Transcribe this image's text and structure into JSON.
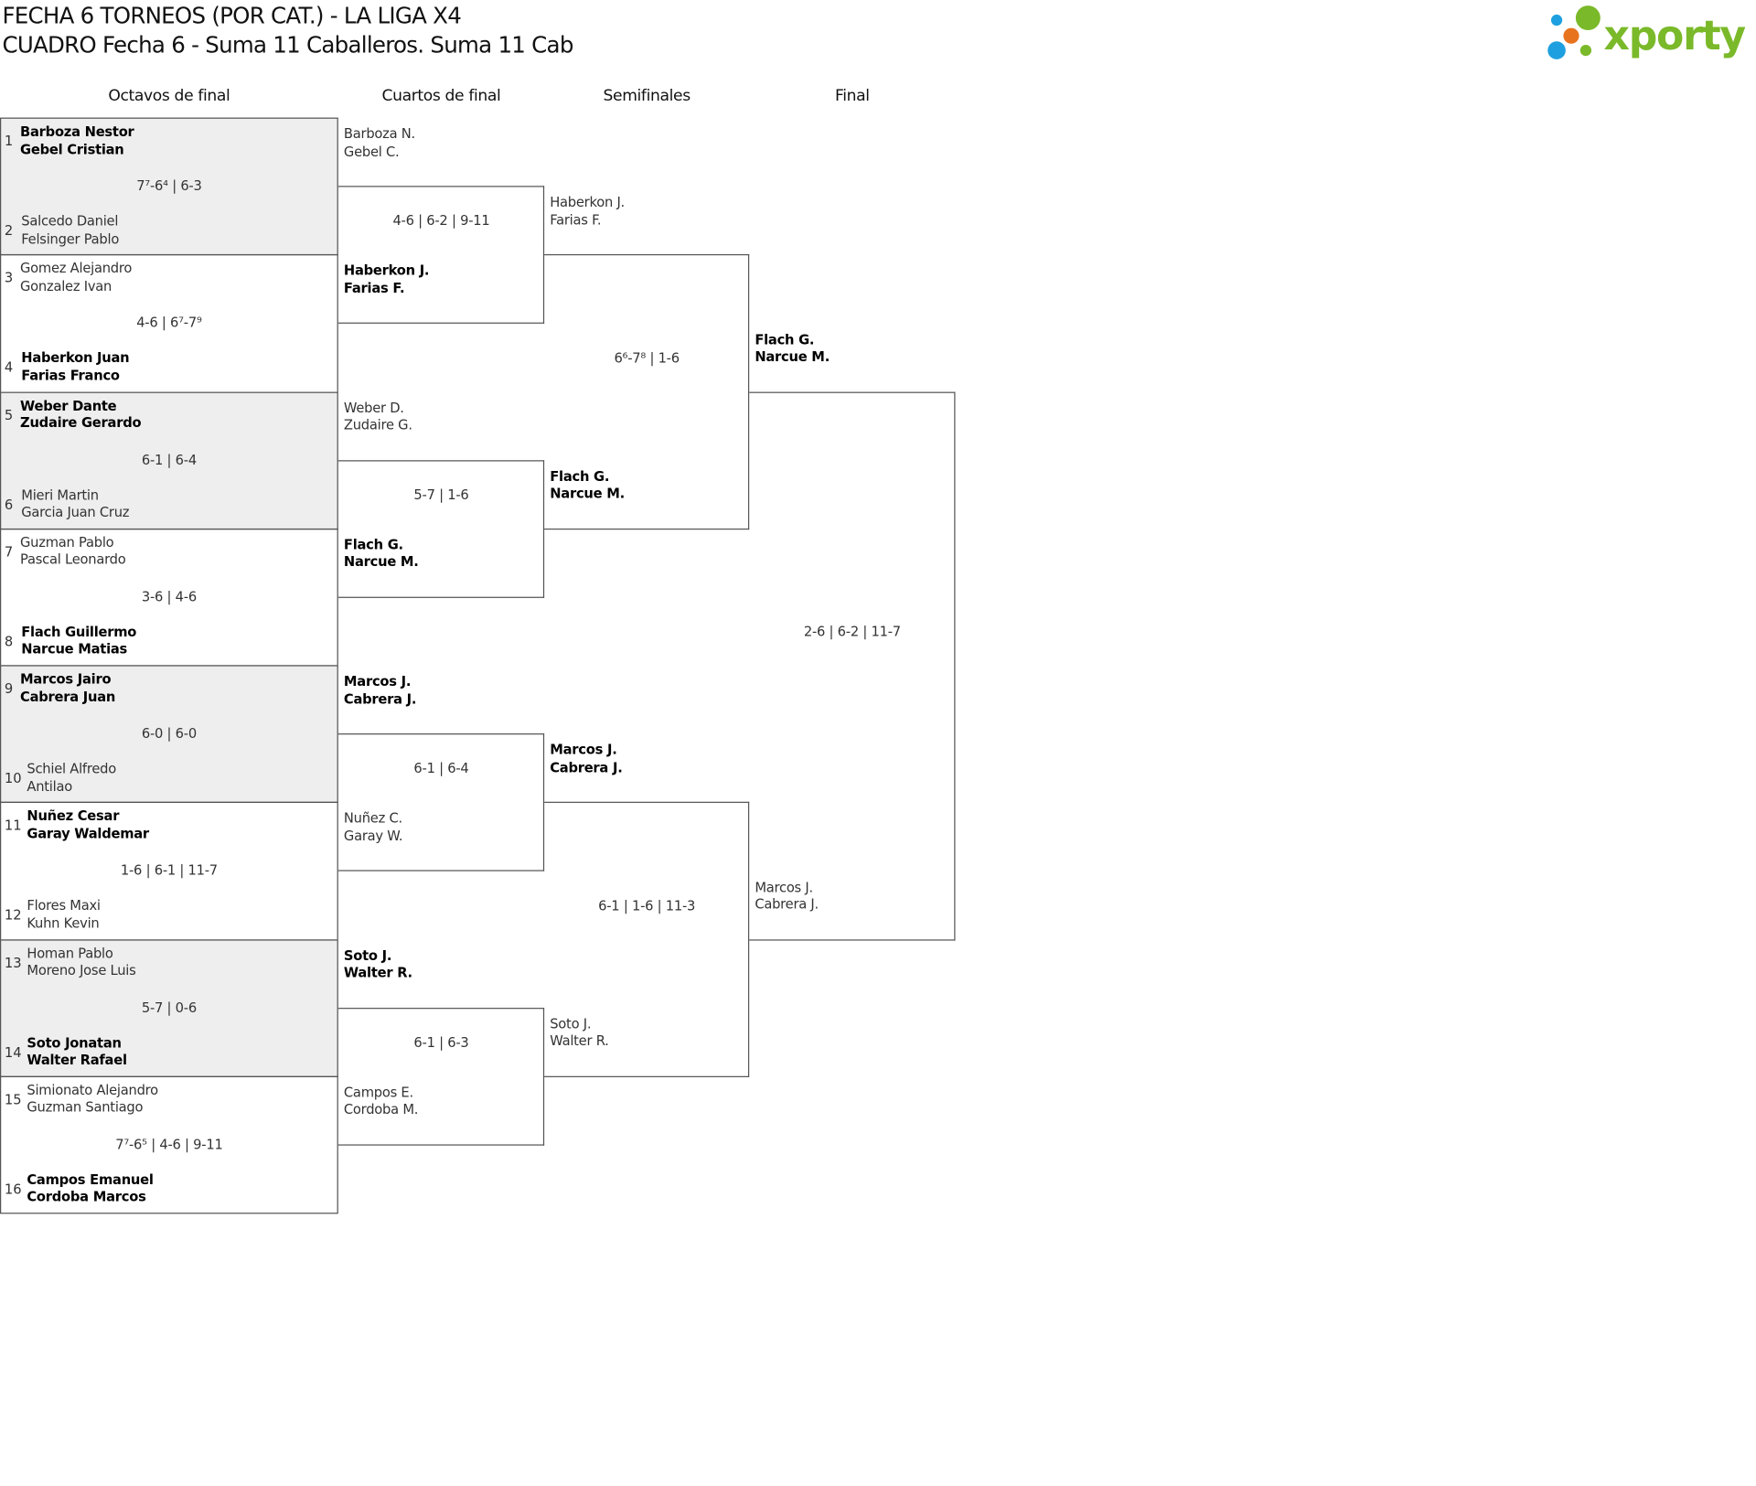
{
  "header": {
    "title": "FECHA 6 TORNEOS (POR CAT.) - LA LIGA X4",
    "subtitle": "CUADRO Fecha 6 - Suma 11 Caballeros. Suma 11 Cab",
    "logo_text": "xporty"
  },
  "colors": {
    "logo_green": "#7ab929",
    "logo_blue": "#1ea0e0",
    "logo_orange": "#e8731e",
    "shaded_row": "#eeeeee"
  },
  "rounds": [
    "Octavos de final",
    "Cuartos de final",
    "Semifinales",
    "Final"
  ],
  "octavos": [
    {
      "top": {
        "seed": "1",
        "p1": "Barboza Nestor",
        "p2": "Gebel Cristian",
        "winner": true
      },
      "bottom": {
        "seed": "2",
        "p1": "Salcedo Daniel",
        "p2": "Felsinger Pablo",
        "winner": false
      },
      "score": "7⁷-6⁴ | 6-3"
    },
    {
      "top": {
        "seed": "3",
        "p1": "Gomez Alejandro",
        "p2": "Gonzalez Ivan",
        "winner": false
      },
      "bottom": {
        "seed": "4",
        "p1": "Haberkon Juan",
        "p2": "Farias Franco",
        "winner": true
      },
      "score": "4-6 | 6⁷-7⁹"
    },
    {
      "top": {
        "seed": "5",
        "p1": "Weber Dante",
        "p2": "Zudaire Gerardo",
        "winner": true
      },
      "bottom": {
        "seed": "6",
        "p1": "Mieri Martin",
        "p2": "Garcia Juan Cruz",
        "winner": false
      },
      "score": "6-1 | 6-4"
    },
    {
      "top": {
        "seed": "7",
        "p1": "Guzman Pablo",
        "p2": "Pascal Leonardo",
        "winner": false
      },
      "bottom": {
        "seed": "8",
        "p1": "Flach Guillermo",
        "p2": "Narcue Matias",
        "winner": true
      },
      "score": "3-6 | 4-6"
    },
    {
      "top": {
        "seed": "9",
        "p1": "Marcos Jairo",
        "p2": "Cabrera Juan",
        "winner": true
      },
      "bottom": {
        "seed": "10",
        "p1": "Schiel Alfredo",
        "p2": "Antilao",
        "winner": false
      },
      "score": "6-0 | 6-0"
    },
    {
      "top": {
        "seed": "11",
        "p1": "Nuñez Cesar",
        "p2": "Garay Waldemar",
        "winner": true
      },
      "bottom": {
        "seed": "12",
        "p1": "Flores Maxi",
        "p2": "Kuhn Kevin",
        "winner": false
      },
      "score": "1-6 | 6-1 | 11-7"
    },
    {
      "top": {
        "seed": "13",
        "p1": "Homan Pablo",
        "p2": "Moreno Jose Luis",
        "winner": false
      },
      "bottom": {
        "seed": "14",
        "p1": "Soto Jonatan",
        "p2": "Walter Rafael",
        "winner": true
      },
      "score": "5-7 | 0-6"
    },
    {
      "top": {
        "seed": "15",
        "p1": "Simionato Alejandro",
        "p2": "Guzman Santiago",
        "winner": false
      },
      "bottom": {
        "seed": "16",
        "p1": "Campos Emanuel",
        "p2": "Cordoba Marcos",
        "winner": true
      },
      "score": "7⁷-6⁵ | 4-6 | 9-11"
    }
  ],
  "cuartos": [
    {
      "top": {
        "p1": "Barboza N.",
        "p2": "Gebel C.",
        "winner": false
      },
      "bottom": {
        "p1": "Haberkon J.",
        "p2": "Farias F.",
        "winner": true
      },
      "score": "4-6 | 6-2 | 9-11"
    },
    {
      "top": {
        "p1": "Weber D.",
        "p2": "Zudaire G.",
        "winner": false
      },
      "bottom": {
        "p1": "Flach G.",
        "p2": "Narcue M.",
        "winner": true
      },
      "score": "5-7 | 1-6"
    },
    {
      "top": {
        "p1": "Marcos J.",
        "p2": "Cabrera J.",
        "winner": true
      },
      "bottom": {
        "p1": "Nuñez C.",
        "p2": "Garay W.",
        "winner": false
      },
      "score": "6-1 | 6-4"
    },
    {
      "top": {
        "p1": "Soto J.",
        "p2": "Walter R.",
        "winner": true
      },
      "bottom": {
        "p1": "Campos E.",
        "p2": "Cordoba M.",
        "winner": false
      },
      "score": "6-1 | 6-3"
    }
  ],
  "semifinales": [
    {
      "top": {
        "p1": "Haberkon J.",
        "p2": "Farias F.",
        "winner": false
      },
      "bottom": {
        "p1": "Flach G.",
        "p2": "Narcue M.",
        "winner": true
      },
      "score": "6⁶-7⁸ | 1-6"
    },
    {
      "top": {
        "p1": "Marcos J.",
        "p2": "Cabrera J.",
        "winner": true
      },
      "bottom": {
        "p1": "Soto J.",
        "p2": "Walter R.",
        "winner": false
      },
      "score": "6-1 | 1-6 | 11-3"
    }
  ],
  "final": [
    {
      "top": {
        "p1": "Flach G.",
        "p2": "Narcue M.",
        "winner": true
      },
      "bottom": {
        "p1": "Marcos J.",
        "p2": "Cabrera J.",
        "winner": false
      },
      "score": "2-6 | 6-2 | 11-7"
    }
  ]
}
